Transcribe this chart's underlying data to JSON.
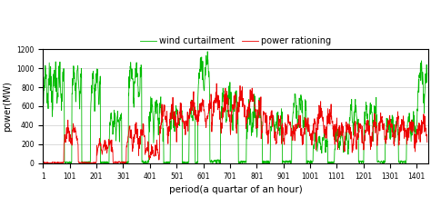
{
  "xlabel": "period(a quartar of an hour)",
  "ylabel": "power(MW)",
  "ylim": [
    0,
    1200
  ],
  "yticks": [
    0,
    200,
    400,
    600,
    800,
    1000,
    1200
  ],
  "xticks": [
    1,
    101,
    201,
    301,
    401,
    501,
    601,
    701,
    801,
    901,
    1001,
    1101,
    1201,
    1301,
    1401
  ],
  "xmin": 1,
  "xmax": 1445,
  "wind_color": "#00bb00",
  "rationing_color": "#ee0000",
  "wind_label": "wind curtailment",
  "rationing_label": "power rationing",
  "linewidth": 0.6,
  "figsize": [
    4.74,
    2.17
  ],
  "dpi": 100
}
